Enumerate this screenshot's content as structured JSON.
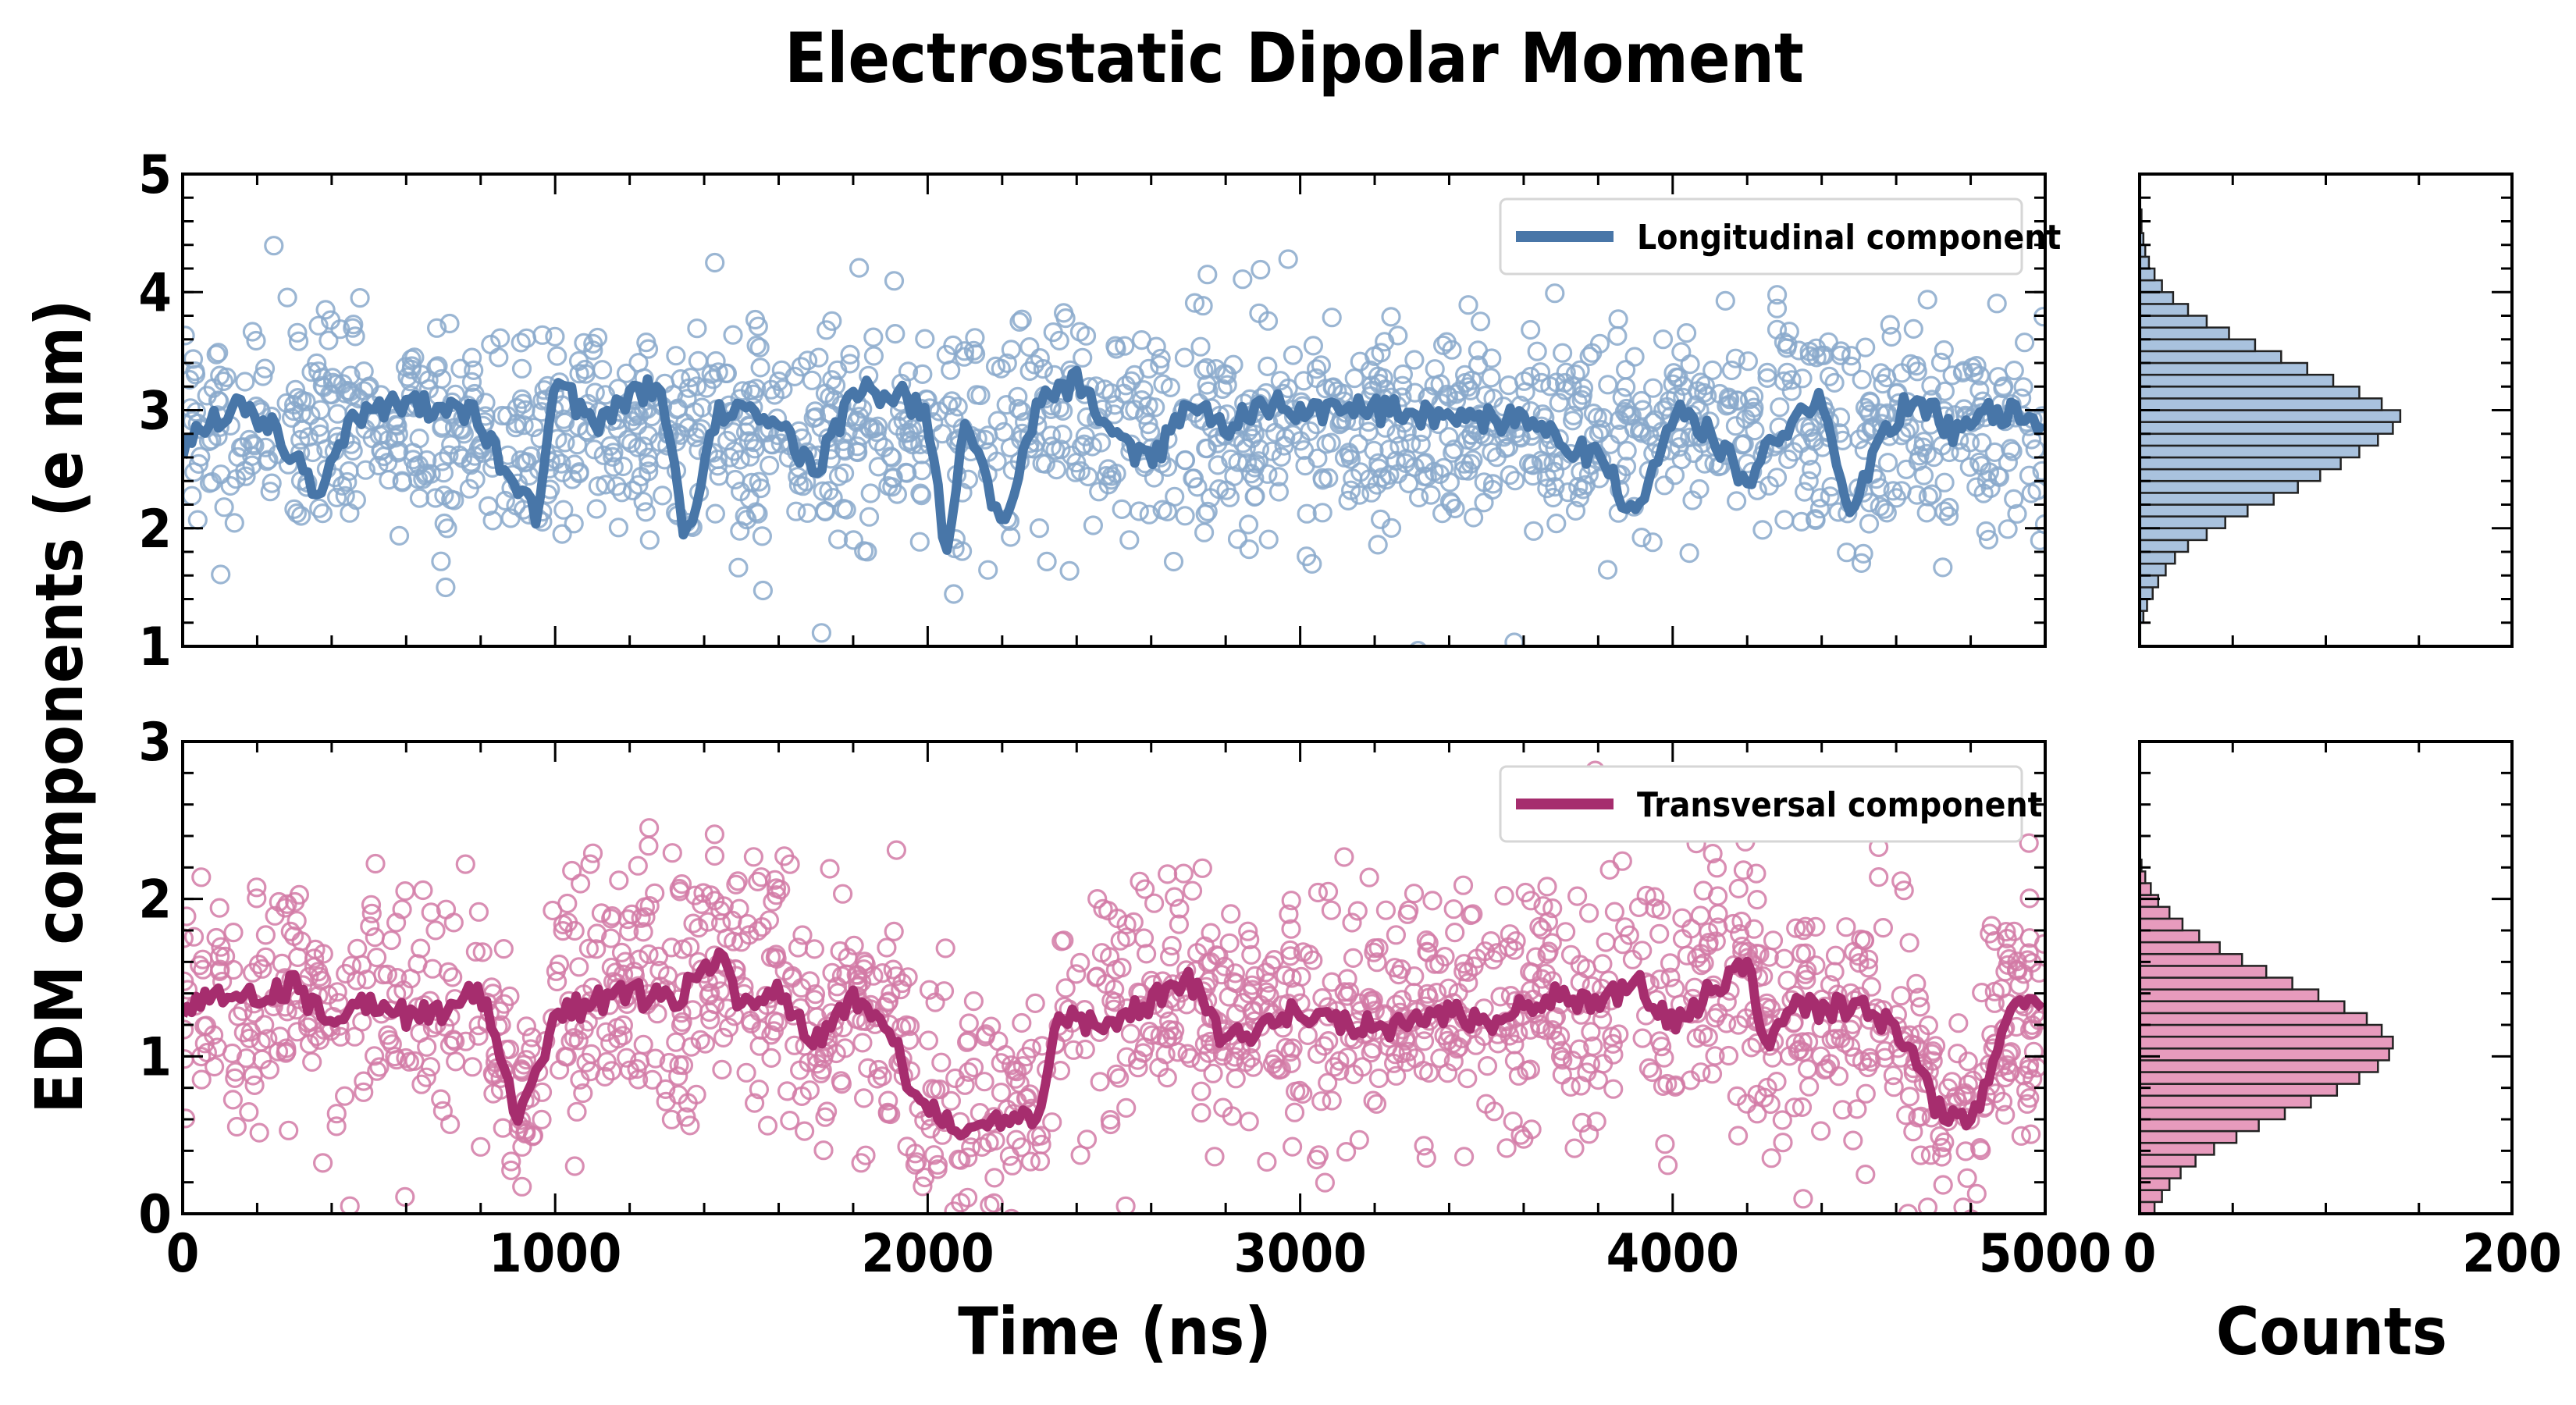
{
  "figure": {
    "title": "Electrostatic Dipolar Moment",
    "ylabel": "EDM components (e nm)",
    "xlabel_time": "Time (ns)",
    "xlabel_counts": "Counts"
  },
  "colors": {
    "longitudinal": "#4876a8",
    "longitudinal_scatter": "#8aa9cb",
    "longitudinal_hist": "#a9c2de",
    "transversal": "#a62d6e",
    "transversal_scatter": "#d27aa6",
    "transversal_hist": "#e79bbd"
  },
  "chart_data": [
    {
      "id": "longitudinal",
      "type": "scatter",
      "legend": "Longitudinal component",
      "legend_position": "top-right",
      "x_range": [
        0,
        5000
      ],
      "ylim": [
        1,
        5
      ],
      "yticks": [
        "1",
        "2",
        "3",
        "4",
        "5"
      ],
      "xticks": [
        "0",
        "1000",
        "2000",
        "3000",
        "4000",
        "5000"
      ],
      "show_xtick_labels": false,
      "n_points": 1500,
      "scatter_mean": 2.85,
      "scatter_std": 0.45,
      "smoothed_line": [
        [
          0,
          2.7
        ],
        [
          150,
          3.05
        ],
        [
          250,
          2.85
        ],
        [
          360,
          2.3
        ],
        [
          450,
          2.95
        ],
        [
          600,
          3.05
        ],
        [
          780,
          2.95
        ],
        [
          850,
          2.6
        ],
        [
          950,
          2.1
        ],
        [
          1000,
          3.3
        ],
        [
          1100,
          2.85
        ],
        [
          1200,
          3.1
        ],
        [
          1280,
          3.25
        ],
        [
          1350,
          1.85
        ],
        [
          1420,
          2.9
        ],
        [
          1480,
          3.05
        ],
        [
          1600,
          2.9
        ],
        [
          1700,
          2.45
        ],
        [
          1800,
          3.15
        ],
        [
          1920,
          3.15
        ],
        [
          2000,
          2.95
        ],
        [
          2050,
          1.8
        ],
        [
          2100,
          2.9
        ],
        [
          2200,
          2.0
        ],
        [
          2300,
          3.1
        ],
        [
          2400,
          3.25
        ],
        [
          2500,
          2.8
        ],
        [
          2600,
          2.55
        ],
        [
          2700,
          3.05
        ],
        [
          2800,
          2.85
        ],
        [
          2900,
          3.05
        ],
        [
          3000,
          3.0
        ],
        [
          3200,
          3.0
        ],
        [
          3400,
          2.95
        ],
        [
          3600,
          2.9
        ],
        [
          3800,
          2.6
        ],
        [
          3900,
          2.1
        ],
        [
          4000,
          3.0
        ],
        [
          4100,
          2.8
        ],
        [
          4200,
          2.4
        ],
        [
          4300,
          2.85
        ],
        [
          4400,
          3.1
        ],
        [
          4470,
          2.05
        ],
        [
          4550,
          2.7
        ],
        [
          4650,
          3.15
        ],
        [
          4750,
          2.8
        ],
        [
          4850,
          3.0
        ],
        [
          5000,
          2.9
        ]
      ]
    },
    {
      "id": "transversal",
      "type": "scatter",
      "legend": "Transversal component",
      "legend_position": "top-right",
      "x_range": [
        0,
        5000
      ],
      "ylim": [
        0,
        3
      ],
      "yticks": [
        "0",
        "1",
        "2",
        "3"
      ],
      "xticks": [
        "0",
        "1000",
        "2000",
        "3000",
        "4000",
        "5000"
      ],
      "show_xtick_labels": true,
      "n_points": 1500,
      "scatter_std": 0.4,
      "smoothed_line": [
        [
          0,
          1.25
        ],
        [
          100,
          1.4
        ],
        [
          200,
          1.35
        ],
        [
          300,
          1.45
        ],
        [
          400,
          1.2
        ],
        [
          500,
          1.35
        ],
        [
          600,
          1.25
        ],
        [
          700,
          1.3
        ],
        [
          800,
          1.4
        ],
        [
          900,
          0.6
        ],
        [
          1000,
          1.25
        ],
        [
          1100,
          1.35
        ],
        [
          1200,
          1.4
        ],
        [
          1300,
          1.35
        ],
        [
          1400,
          1.5
        ],
        [
          1450,
          1.7
        ],
        [
          1500,
          1.3
        ],
        [
          1600,
          1.4
        ],
        [
          1700,
          1.1
        ],
        [
          1800,
          1.4
        ],
        [
          1900,
          1.2
        ],
        [
          1950,
          0.8
        ],
        [
          2000,
          0.7
        ],
        [
          2100,
          0.55
        ],
        [
          2200,
          0.6
        ],
        [
          2300,
          0.65
        ],
        [
          2350,
          1.3
        ],
        [
          2450,
          1.2
        ],
        [
          2550,
          1.3
        ],
        [
          2600,
          1.35
        ],
        [
          2700,
          1.5
        ],
        [
          2800,
          1.1
        ],
        [
          2900,
          1.2
        ],
        [
          3000,
          1.3
        ],
        [
          3100,
          1.2
        ],
        [
          3200,
          1.2
        ],
        [
          3300,
          1.2
        ],
        [
          3400,
          1.3
        ],
        [
          3500,
          1.2
        ],
        [
          3600,
          1.3
        ],
        [
          3700,
          1.4
        ],
        [
          3800,
          1.3
        ],
        [
          3900,
          1.5
        ],
        [
          4000,
          1.2
        ],
        [
          4100,
          1.4
        ],
        [
          4200,
          1.6
        ],
        [
          4250,
          1.05
        ],
        [
          4300,
          1.3
        ],
        [
          4400,
          1.3
        ],
        [
          4500,
          1.3
        ],
        [
          4600,
          1.2
        ],
        [
          4700,
          0.7
        ],
        [
          4800,
          0.55
        ],
        [
          4900,
          1.3
        ],
        [
          5000,
          1.35
        ]
      ]
    },
    {
      "id": "longitudinal_hist",
      "type": "bar",
      "orientation": "horizontal",
      "ylim": [
        1,
        5
      ],
      "xlim": [
        0,
        200
      ],
      "xticks": [
        "0",
        "200"
      ],
      "show_xtick_labels": false,
      "bin_start": 1.0,
      "bin_width": 0.1,
      "values": [
        0,
        0,
        2,
        4,
        7,
        10,
        14,
        19,
        26,
        36,
        46,
        58,
        72,
        85,
        97,
        108,
        118,
        128,
        136,
        140,
        130,
        118,
        104,
        90,
        76,
        62,
        48,
        36,
        26,
        18,
        12,
        8,
        5,
        3,
        2,
        1,
        1,
        0,
        0,
        0
      ]
    },
    {
      "id": "transversal_hist",
      "type": "bar",
      "orientation": "horizontal",
      "ylim": [
        0,
        3
      ],
      "xlim": [
        0,
        200
      ],
      "xticks": [
        "0",
        "200"
      ],
      "show_xtick_labels": true,
      "bin_start": 0.0,
      "bin_width": 0.075,
      "values": [
        8,
        12,
        16,
        22,
        30,
        40,
        52,
        64,
        78,
        92,
        106,
        118,
        128,
        134,
        136,
        130,
        122,
        110,
        96,
        82,
        68,
        55,
        43,
        32,
        23,
        16,
        10,
        6,
        3,
        1,
        0,
        0,
        0,
        0,
        0,
        0,
        0,
        0,
        0,
        0
      ]
    }
  ]
}
